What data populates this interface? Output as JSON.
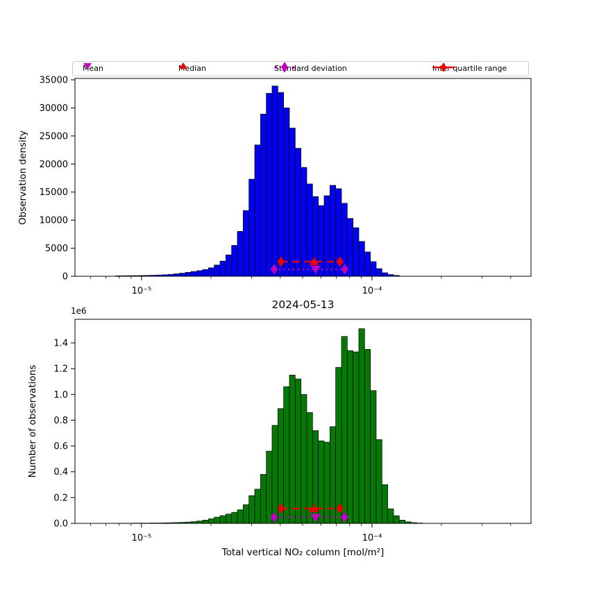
{
  "figure": {
    "title": "2024-05-13",
    "xlabel": "Total vertical NO₂ column [mol/m²]",
    "offset_text": "1e6",
    "colors": {
      "blue_bars": "#0101f0",
      "green_bars": "#067806",
      "red": "#f10000",
      "magenta": "#bf00bf",
      "axis": "#000000",
      "legend_border": "#cccccc",
      "background": "#ffffff"
    }
  },
  "legend": {
    "items": [
      {
        "label": "Mean",
        "marker": "triangle-down",
        "color": "#bf00bf"
      },
      {
        "label": "Median",
        "marker": "triangle-up",
        "color": "#f10000"
      },
      {
        "label": "Standard deviation",
        "marker": "dotted-line-diamond",
        "color": "#bf00bf"
      },
      {
        "label": "Inter quartile range",
        "marker": "dashed-line-diamond",
        "color": "#f10000"
      }
    ]
  },
  "chart_data": [
    {
      "type": "bar",
      "title": "",
      "ylabel": "Observation density",
      "x_scale": "log",
      "xlim": [
        5.14e-06,
        0.00049
      ],
      "ylim": [
        0,
        35250
      ],
      "grid": false,
      "bar_color": "#0101f0",
      "bar_edge_color": "#000000",
      "yticks": [
        {
          "value": 0,
          "label": "0"
        },
        {
          "value": 5000,
          "label": "5000"
        },
        {
          "value": 10000,
          "label": "10000"
        },
        {
          "value": 15000,
          "label": "15000"
        },
        {
          "value": 20000,
          "label": "20000"
        },
        {
          "value": 25000,
          "label": "25000"
        },
        {
          "value": 30000,
          "label": "30000"
        },
        {
          "value": 35000,
          "label": "35000"
        }
      ],
      "xticks": [
        {
          "value": 1e-05,
          "label": "10⁻⁵"
        },
        {
          "value": 0.0001,
          "label": "10⁻⁴"
        }
      ],
      "xminor": [
        6e-06,
        7e-06,
        8e-06,
        9e-06,
        2e-05,
        3e-05,
        4e-05,
        5e-05,
        6e-05,
        7e-05,
        8e-05,
        9e-05,
        0.0002,
        0.0003,
        0.0004
      ],
      "bins_start": 7.74e-06,
      "bins_ratio": 1.0595,
      "values": [
        80,
        90,
        100,
        110,
        130,
        150,
        180,
        220,
        270,
        340,
        430,
        550,
        700,
        850,
        1000,
        1200,
        1500,
        2000,
        2700,
        3800,
        5500,
        8000,
        11700,
        17300,
        23400,
        28900,
        32600,
        33900,
        32750,
        30000,
        26400,
        22800,
        19400,
        16450,
        14200,
        12600,
        14350,
        16200,
        15600,
        13000,
        10300,
        8650,
        6200,
        4330,
        2600,
        1360,
        620,
        300,
        150
      ],
      "stats": {
        "mean": 5.7e-05,
        "median": 5.6e-05,
        "std": [
          3.76e-05,
          7.62e-05
        ],
        "iqr": [
          4.03e-05,
          7.26e-05
        ],
        "iqr_line_y": 2600,
        "std_line_y": 1250
      }
    },
    {
      "type": "bar",
      "title": "2024-05-13",
      "ylabel": "Number of observations",
      "y_offset_text": "1e6",
      "x_scale": "log",
      "xlim": [
        5.14e-06,
        0.00049
      ],
      "ylim": [
        0,
        1583000
      ],
      "grid": false,
      "bar_color": "#067806",
      "bar_edge_color": "#000000",
      "yticks": [
        {
          "value": 0,
          "label": "0.0"
        },
        {
          "value": 200000,
          "label": "0.2"
        },
        {
          "value": 400000,
          "label": "0.4"
        },
        {
          "value": 600000,
          "label": "0.6"
        },
        {
          "value": 800000,
          "label": "0.8"
        },
        {
          "value": 1000000,
          "label": "1.0"
        },
        {
          "value": 1200000,
          "label": "1.2"
        },
        {
          "value": 1400000,
          "label": "1.4"
        }
      ],
      "xticks": [
        {
          "value": 1e-05,
          "label": "10⁻⁵"
        },
        {
          "value": 0.0001,
          "label": "10⁻⁴"
        }
      ],
      "xminor": [
        6e-06,
        7e-06,
        8e-06,
        9e-06,
        2e-05,
        3e-05,
        4e-05,
        5e-05,
        6e-05,
        7e-05,
        8e-05,
        9e-05,
        0.0002,
        0.0003,
        0.0004
      ],
      "bins_start": 7.74e-06,
      "bins_ratio": 1.0595,
      "values": [
        1000,
        1000,
        1000,
        2000,
        2000,
        2000,
        3000,
        3000,
        4000,
        5000,
        6000,
        8000,
        10000,
        13000,
        18000,
        25000,
        35000,
        48000,
        60000,
        72000,
        85000,
        105000,
        145000,
        215000,
        265000,
        380000,
        560000,
        760000,
        890000,
        1060000,
        1150000,
        1120000,
        1000000,
        860000,
        720000,
        640000,
        630000,
        750000,
        1210000,
        1450000,
        1340000,
        1330000,
        1510000,
        1350000,
        1030000,
        650000,
        300000,
        113000,
        59000,
        25000,
        12000,
        6000,
        3000
      ],
      "stats": {
        "mean": 5.7e-05,
        "median": 5.6e-05,
        "std": [
          3.76e-05,
          7.62e-05
        ],
        "iqr": [
          4.03e-05,
          7.26e-05
        ],
        "iqr_line_y": 115000,
        "std_line_y": 48000
      }
    }
  ]
}
